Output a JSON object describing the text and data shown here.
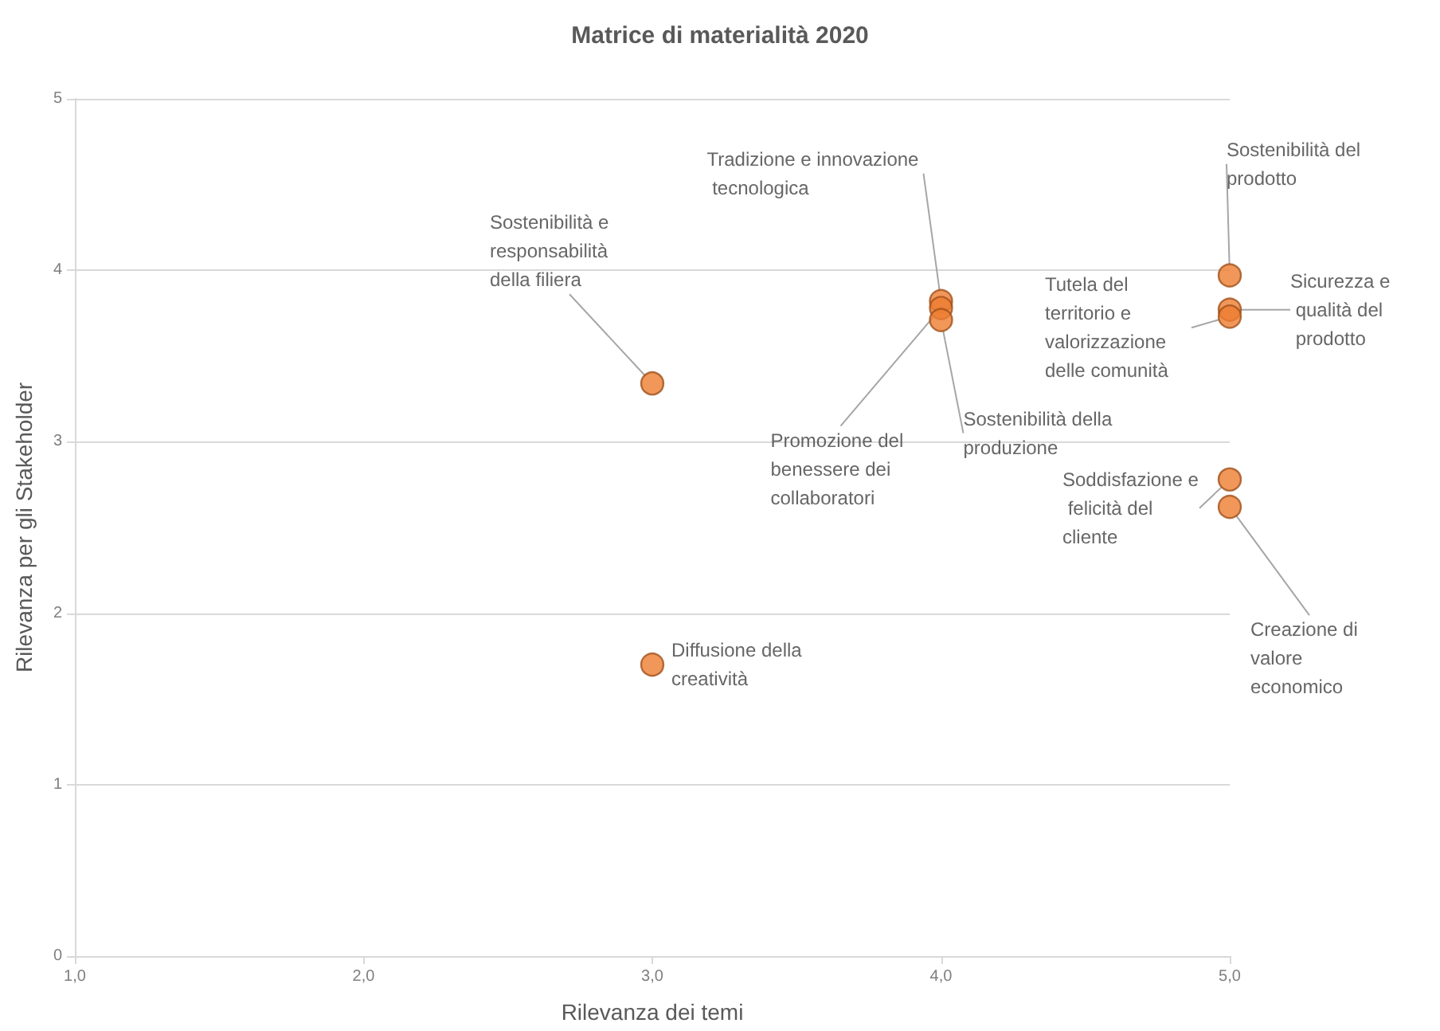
{
  "chart_data": {
    "type": "scatter",
    "title": "Matrice di materialità 2020",
    "xlabel": "Rilevanza dei temi",
    "ylabel": "Rilevanza per gli Stakeholder",
    "x": [
      3,
      3,
      4,
      4,
      4,
      5,
      5,
      5,
      5,
      5
    ],
    "values": [
      3.34,
      1.7,
      3.82,
      3.78,
      3.71,
      3.97,
      3.77,
      3.73,
      2.78,
      2.62
    ],
    "color": "#ed7d31",
    "marker": "circle",
    "xlim": [
      1,
      5
    ],
    "xticks": [
      {
        "value": 1,
        "label": "1,0"
      },
      {
        "value": 2,
        "label": "2,0"
      },
      {
        "value": 3,
        "label": "3,0"
      },
      {
        "value": 4,
        "label": "4,0"
      },
      {
        "value": 5,
        "label": "5,0"
      }
    ],
    "ylim": [
      0,
      5
    ],
    "yticks": [
      0,
      1,
      2,
      3,
      4,
      5
    ],
    "grid": "y",
    "annotations": [
      {
        "text": "Sostenibilità e responsabilità della filiera",
        "x": 3,
        "y": 3.34
      },
      {
        "text": "Diffusione della creatività",
        "x": 3,
        "y": 1.7
      },
      {
        "text": "Tradizione e innovazione tecnologica",
        "x": 4,
        "y": 3.82
      },
      {
        "text": "Promozione del benessere dei collaboratori",
        "x": 4,
        "y": 3.78
      },
      {
        "text": "Sostenibilità della produzione",
        "x": 4,
        "y": 3.71
      },
      {
        "text": "Sostenibilità del prodotto",
        "x": 5,
        "y": 3.97
      },
      {
        "text": "Sicurezza e qualità del prodotto",
        "x": 5,
        "y": 3.77
      },
      {
        "text": "Tutela del territorio e valorizzazione delle comunità",
        "x": 5,
        "y": 3.73
      },
      {
        "text": "Soddisfazione e felicità del cliente",
        "x": 5,
        "y": 2.78
      },
      {
        "text": "Creazione di valore economico",
        "x": 5,
        "y": 2.62
      }
    ]
  }
}
